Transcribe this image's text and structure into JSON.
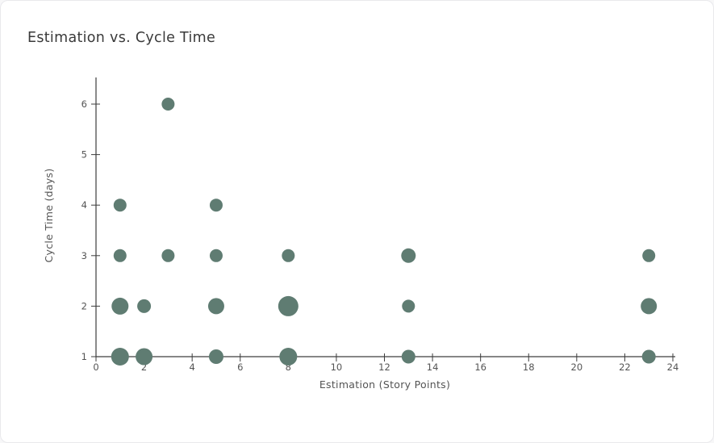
{
  "card": {
    "title": "Estimation vs. Cycle Time"
  },
  "colors": {
    "point": "#5f7c72",
    "axis": "#3d3d3d",
    "tick_label": "#545454",
    "title": "#3a3a3a",
    "card_border": "#e9e9ec",
    "card_background": "#ffffff"
  },
  "chart_data": {
    "type": "scatter",
    "title": "Estimation vs. Cycle Time",
    "xlabel": "Estimation (Story Points)",
    "ylabel": "Cycle Time (days)",
    "xlim": [
      0,
      24
    ],
    "ylim": [
      1,
      6.5
    ],
    "xticks": [
      0,
      2,
      4,
      6,
      8,
      10,
      12,
      14,
      16,
      18,
      20,
      22,
      24
    ],
    "yticks": [
      1,
      2,
      3,
      4,
      5,
      6
    ],
    "grid": false,
    "legend": false,
    "point_color": "#5f7c72",
    "axis_color": "#3d3d3d",
    "tick_color": "#545454",
    "points": [
      {
        "x": 3,
        "y": 6,
        "r": 8
      },
      {
        "x": 1,
        "y": 4,
        "r": 8
      },
      {
        "x": 5,
        "y": 4,
        "r": 8
      },
      {
        "x": 1,
        "y": 3,
        "r": 8
      },
      {
        "x": 3,
        "y": 3,
        "r": 8
      },
      {
        "x": 5,
        "y": 3,
        "r": 8
      },
      {
        "x": 8,
        "y": 3,
        "r": 8
      },
      {
        "x": 13,
        "y": 3,
        "r": 9
      },
      {
        "x": 23,
        "y": 3,
        "r": 8
      },
      {
        "x": 1,
        "y": 2,
        "r": 10.5
      },
      {
        "x": 2,
        "y": 2,
        "r": 8.5
      },
      {
        "x": 5,
        "y": 2,
        "r": 10
      },
      {
        "x": 8,
        "y": 2,
        "r": 12.5
      },
      {
        "x": 13,
        "y": 2,
        "r": 8
      },
      {
        "x": 23,
        "y": 2,
        "r": 10
      },
      {
        "x": 1,
        "y": 1,
        "r": 11
      },
      {
        "x": 2,
        "y": 1,
        "r": 10.5
      },
      {
        "x": 5,
        "y": 1,
        "r": 9
      },
      {
        "x": 8,
        "y": 1,
        "r": 11
      },
      {
        "x": 13,
        "y": 1,
        "r": 8.5
      },
      {
        "x": 23,
        "y": 1,
        "r": 8.5
      }
    ]
  }
}
